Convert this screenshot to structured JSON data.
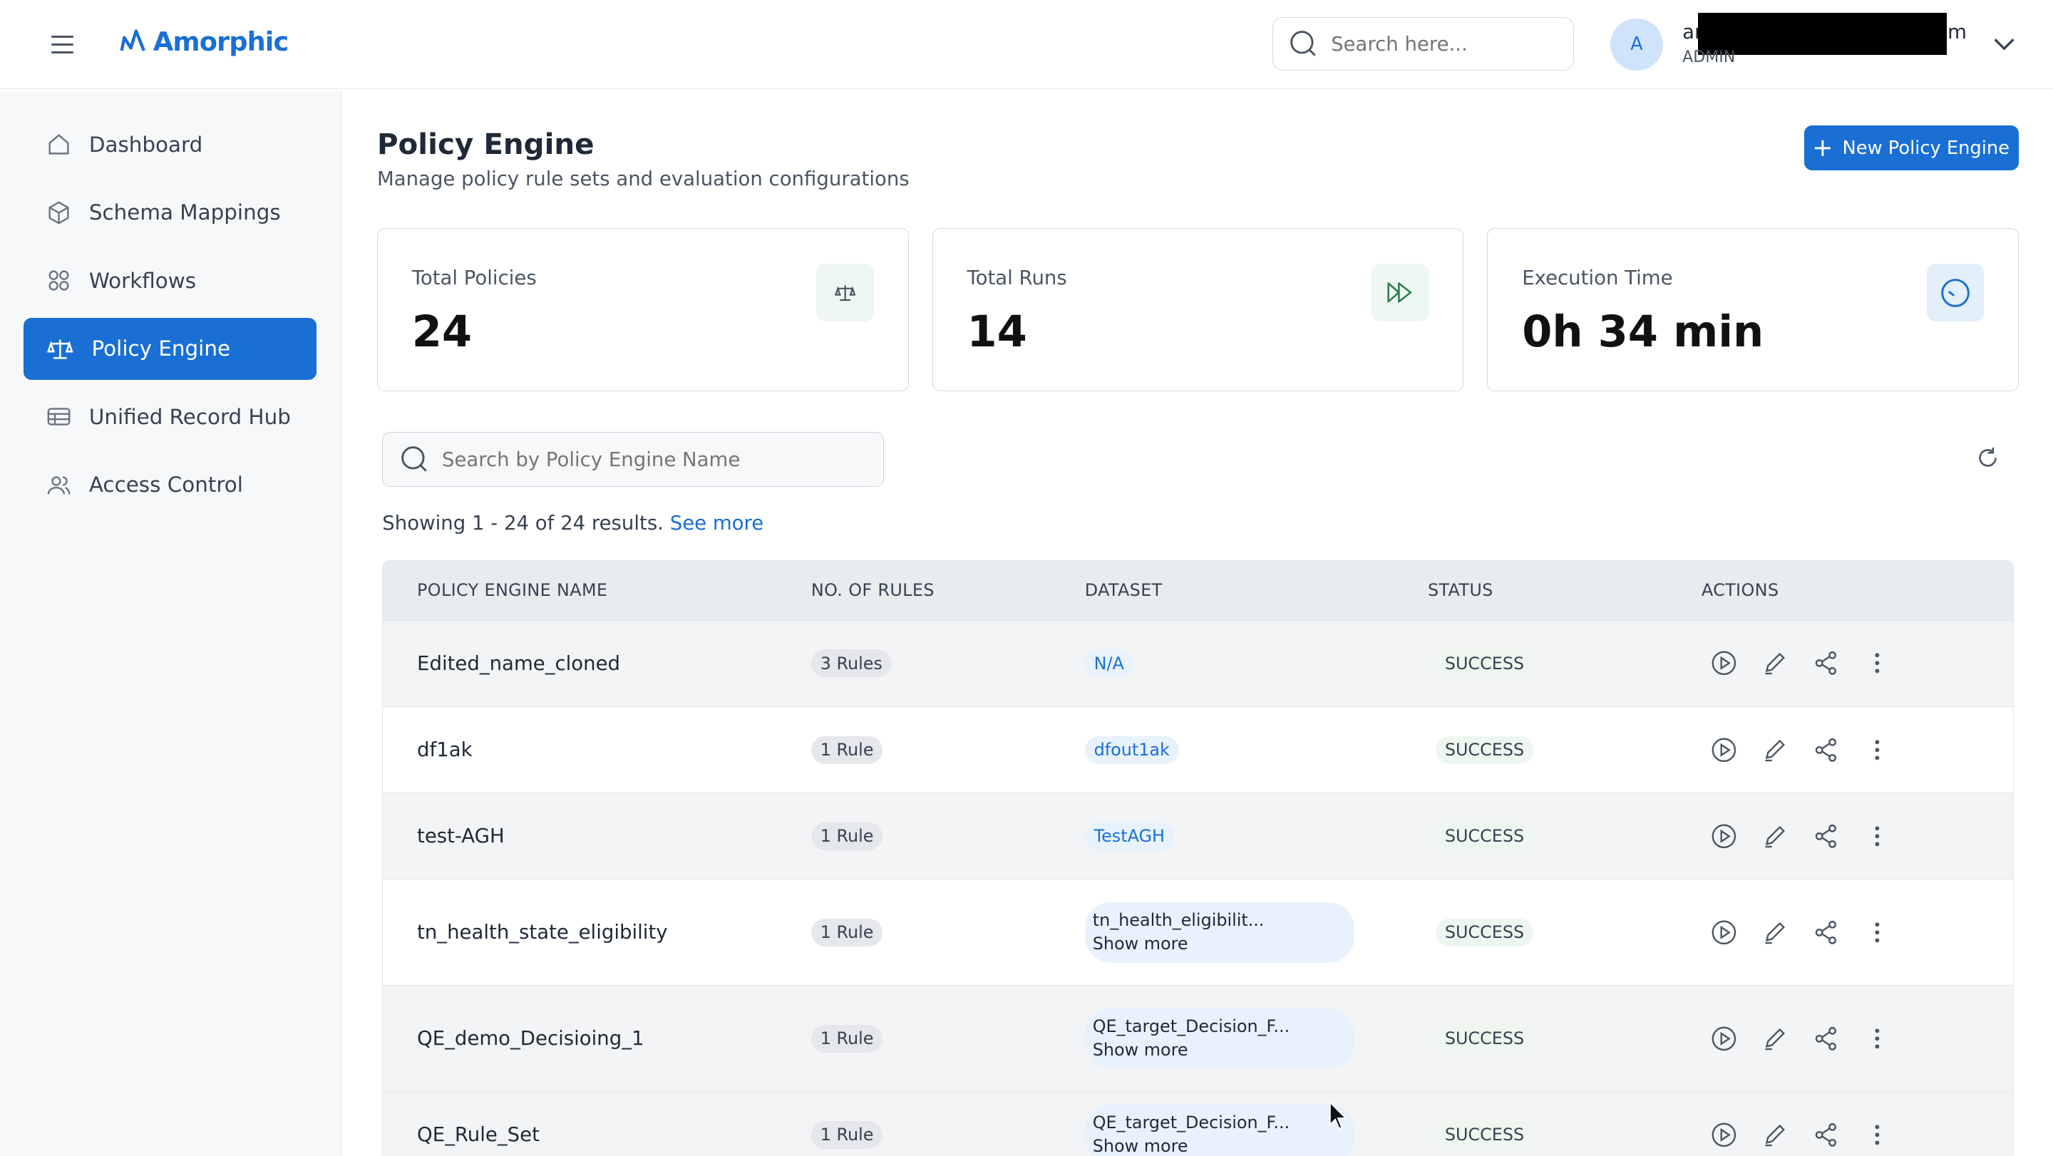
{
  "header": {
    "logo": "Amorphic",
    "search_placeholder": "Search here...",
    "avatar_initial": "A",
    "user_prefix": "ar",
    "user_suffix": "om",
    "role": "ADMIN"
  },
  "sidebar": {
    "items": [
      {
        "label": "Dashboard",
        "icon": "home-icon"
      },
      {
        "label": "Schema Mappings",
        "icon": "cube-icon"
      },
      {
        "label": "Workflows",
        "icon": "workflow-icon"
      },
      {
        "label": "Policy Engine",
        "icon": "scale-icon",
        "active": true
      },
      {
        "label": "Unified Record Hub",
        "icon": "table-icon"
      },
      {
        "label": "Access Control",
        "icon": "users-icon"
      }
    ]
  },
  "page": {
    "title": "Policy Engine",
    "subtitle": "Manage policy rule sets and evaluation configurations",
    "new_button": "New Policy Engine"
  },
  "stats": [
    {
      "label": "Total Policies",
      "value": "24"
    },
    {
      "label": "Total Runs",
      "value": "14"
    },
    {
      "label": "Execution Time",
      "value": "0h 34 min"
    }
  ],
  "table_search_placeholder": "Search by Policy Engine Name",
  "showing": {
    "text": "Showing 1 - 24 of 24 results.",
    "link": "See more"
  },
  "table": {
    "columns": [
      "POLICY ENGINE NAME",
      "NO. OF RULES",
      "DATASET",
      "STATUS",
      "ACTIONS"
    ],
    "rows": [
      {
        "name": "Edited_name_cloned",
        "rules": "3 Rules",
        "dataset": "N/A",
        "status": "SUCCESS"
      },
      {
        "name": "df1ak",
        "rules": "1 Rule",
        "dataset": "dfout1ak",
        "status": "SUCCESS"
      },
      {
        "name": "test-AGH",
        "rules": "1 Rule",
        "dataset": "TestAGH",
        "status": "SUCCESS"
      },
      {
        "name": "tn_health_state_eligibility",
        "rules": "1 Rule",
        "dataset": "tn_health_eligibilit...",
        "more": "Show more",
        "status": "SUCCESS"
      },
      {
        "name": "QE_demo_Decisioing_1",
        "rules": "1 Rule",
        "dataset": "QE_target_Decision_F...",
        "more": "Show more",
        "status": "SUCCESS"
      },
      {
        "name": "QE_Rule_Set",
        "rules": "1 Rule",
        "dataset": "QE_target_Decision_F...",
        "more": "Show more",
        "status": "SUCCESS"
      }
    ]
  }
}
